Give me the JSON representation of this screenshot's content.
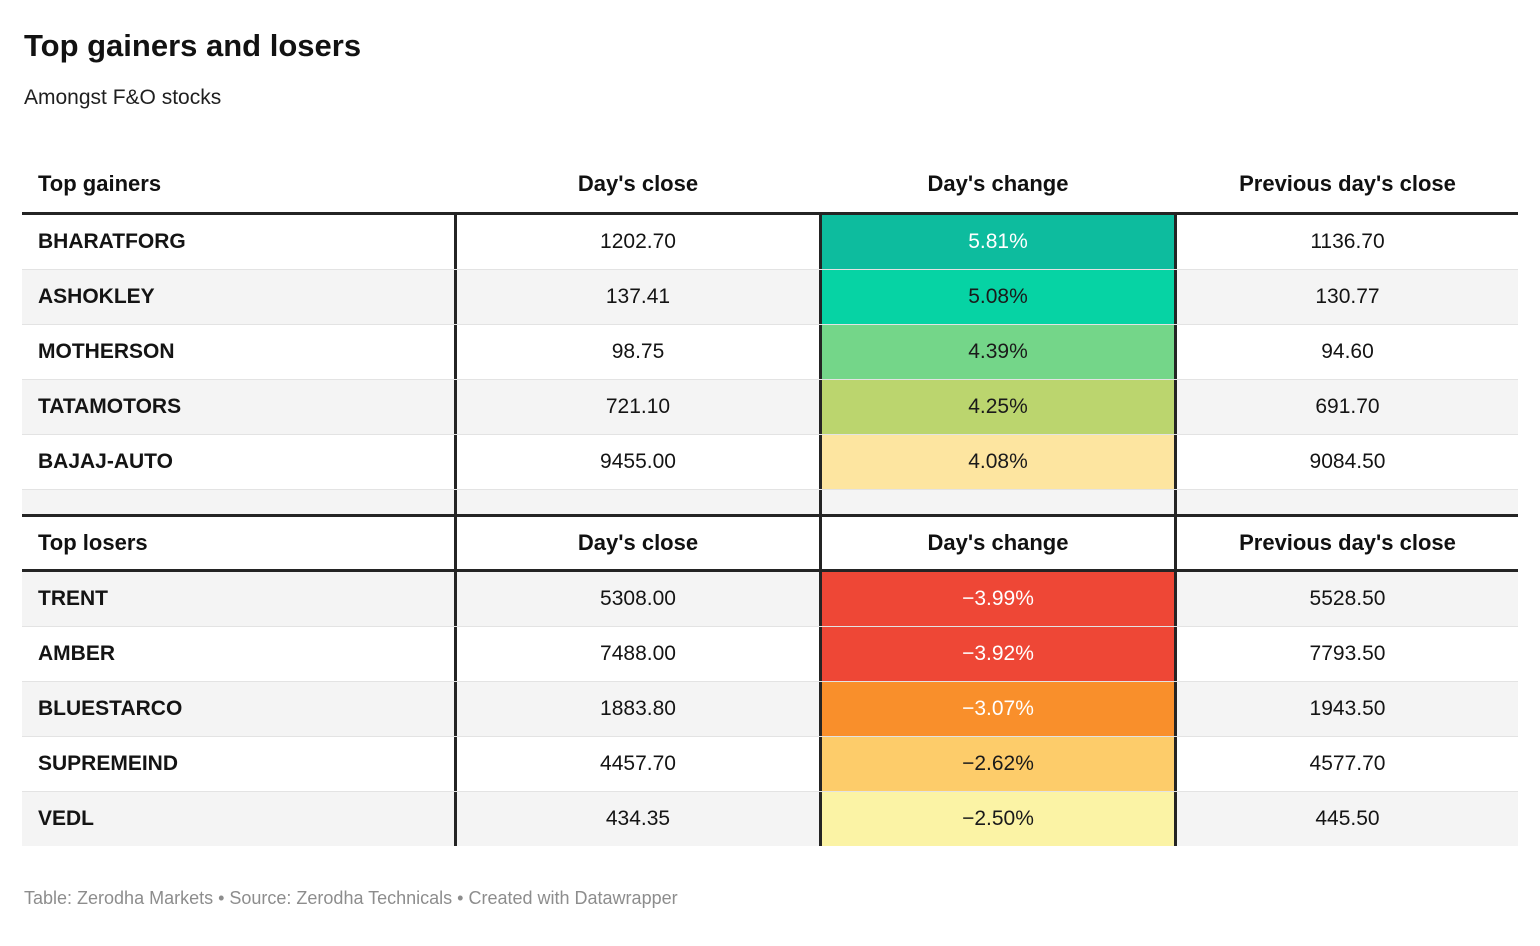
{
  "header": {
    "title": "Top gainers and losers",
    "subtitle": "Amongst F&O stocks"
  },
  "chart_data": {
    "type": "table",
    "tables": {
      "gainers": {
        "section_label": "Top gainers",
        "columns": {
          "close": "Day's close",
          "change": "Day's change",
          "prev": "Previous day's close"
        },
        "rows": [
          {
            "symbol": "BHARATFORG",
            "close": "1202.70",
            "change": "5.81%",
            "change_bg": "#0dbc9e",
            "change_fg": "#ffffff",
            "prev_close": "1136.70"
          },
          {
            "symbol": "ASHOKLEY",
            "close": "137.41",
            "change": "5.08%",
            "change_bg": "#06d3a4",
            "change_fg": "#1a1a1a",
            "prev_close": "130.77"
          },
          {
            "symbol": "MOTHERSON",
            "close": "98.75",
            "change": "4.39%",
            "change_bg": "#74d689",
            "change_fg": "#1a1a1a",
            "prev_close": "94.60"
          },
          {
            "symbol": "TATAMOTORS",
            "close": "721.10",
            "change": "4.25%",
            "change_bg": "#bbd56e",
            "change_fg": "#1a1a1a",
            "prev_close": "691.70"
          },
          {
            "symbol": "BAJAJ-AUTO",
            "close": "9455.00",
            "change": "4.08%",
            "change_bg": "#fde5a0",
            "change_fg": "#1a1a1a",
            "prev_close": "9084.50"
          }
        ]
      },
      "losers": {
        "section_label": "Top losers",
        "columns": {
          "close": "Day's close",
          "change": "Day's change",
          "prev": "Previous day's close"
        },
        "rows": [
          {
            "symbol": "TRENT",
            "close": "5308.00",
            "change": "−3.99%",
            "change_bg": "#ee4736",
            "change_fg": "#ffffff",
            "prev_close": "5528.50"
          },
          {
            "symbol": "AMBER",
            "close": "7488.00",
            "change": "−3.92%",
            "change_bg": "#ee4736",
            "change_fg": "#ffffff",
            "prev_close": "7793.50"
          },
          {
            "symbol": "BLUESTARCO",
            "close": "1883.80",
            "change": "−3.07%",
            "change_bg": "#f98f2b",
            "change_fg": "#ffffff",
            "prev_close": "1943.50"
          },
          {
            "symbol": "SUPREMEIND",
            "close": "4457.70",
            "change": "−2.62%",
            "change_bg": "#fdcc6a",
            "change_fg": "#1a1a1a",
            "prev_close": "4577.70"
          },
          {
            "symbol": "VEDL",
            "close": "434.35",
            "change": "−2.50%",
            "change_bg": "#fbf3a5",
            "change_fg": "#1a1a1a",
            "prev_close": "445.50"
          }
        ]
      }
    }
  },
  "footer": {
    "text": "Table: Zerodha Markets • Source: Zerodha Technicals • Created with Datawrapper"
  }
}
